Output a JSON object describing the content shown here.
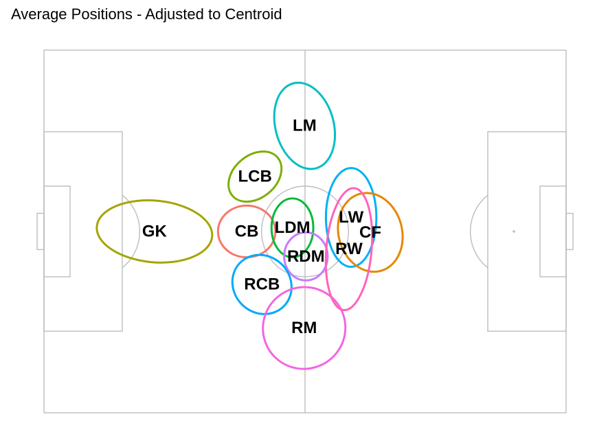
{
  "title": "Average Positions - Adjusted to Centroid",
  "pitch": {
    "length": 120,
    "width": 80,
    "line_color": "#bdbdbd"
  },
  "chart_data": {
    "type": "scatter",
    "title": "Average Positions - Adjusted to Centroid",
    "xlim": [
      0,
      120
    ],
    "ylim": [
      0,
      80
    ],
    "grid": false,
    "legend": "none",
    "series": [
      {
        "label": "GK",
        "color": "#a3a500",
        "x": 25.4,
        "y": 40.0,
        "rx": 13.3,
        "ry": 6.8,
        "angle": -5
      },
      {
        "label": "CB",
        "color": "#f8766d",
        "x": 46.6,
        "y": 40.0,
        "rx": 6.6,
        "ry": 5.7,
        "angle": 0
      },
      {
        "label": "LCB",
        "color": "#7cae00",
        "x": 48.5,
        "y": 52.1,
        "rx": 6.8,
        "ry": 4.7,
        "angle": 40
      },
      {
        "label": "LDM",
        "color": "#00ba38",
        "x": 57.1,
        "y": 40.8,
        "rx": 4.8,
        "ry": 6.5,
        "angle": 0
      },
      {
        "label": "LM",
        "color": "#00bfc4",
        "x": 59.9,
        "y": 63.3,
        "rx": 6.7,
        "ry": 9.7,
        "angle": 15
      },
      {
        "label": "RDM",
        "color": "#c77cff",
        "x": 60.2,
        "y": 34.5,
        "rx": 5.0,
        "ry": 5.3,
        "angle": 0
      },
      {
        "label": "RCB",
        "color": "#00a9ff",
        "x": 50.1,
        "y": 28.3,
        "rx": 6.5,
        "ry": 6.8,
        "angle": 45
      },
      {
        "label": "RM",
        "color": "#f564e3",
        "x": 59.8,
        "y": 18.7,
        "rx": 9.5,
        "ry": 9.0,
        "angle": 25
      },
      {
        "label": "LW",
        "color": "#00b0f6",
        "x": 70.6,
        "y": 43.1,
        "rx": 5.8,
        "ry": 10.9,
        "angle": 0
      },
      {
        "label": "CF",
        "color": "#e58700",
        "x": 75.0,
        "y": 39.8,
        "rx": 7.3,
        "ry": 8.8,
        "angle": 15
      },
      {
        "label": "RW",
        "color": "#ff62bc",
        "x": 70.1,
        "y": 36.1,
        "rx": 5.2,
        "ry": 13.5,
        "angle": -5
      }
    ]
  }
}
